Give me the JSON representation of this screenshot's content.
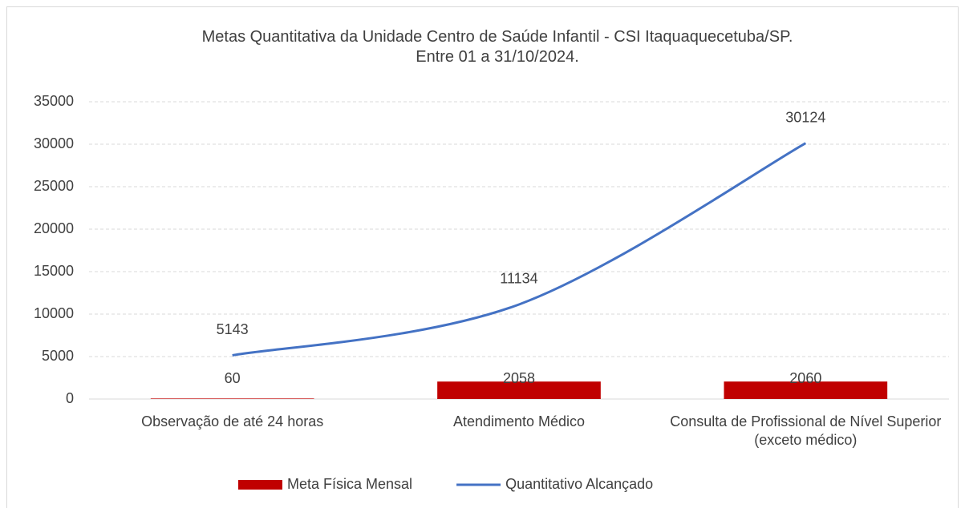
{
  "chart_data": {
    "type": "combo",
    "title": "Metas Quantitativa da Unidade Centro de Saúde Infantil - CSI Itaquaquecetuba/SP. Entre 01 a 31/10/2024.",
    "categories": [
      "Observação de até 24 horas",
      "Atendimento Médico",
      "Consulta de Profissional de Nível Superior (exceto médico)"
    ],
    "series": [
      {
        "name": "Meta Física Mensal",
        "type": "bar",
        "color": "#c00000",
        "values": [
          60,
          2058,
          2060
        ]
      },
      {
        "name": "Quantitativo Alcançado",
        "type": "line",
        "color": "#4472c4",
        "values": [
          5143,
          11134,
          30124
        ]
      }
    ],
    "ylim": [
      0,
      35000
    ],
    "yticks": [
      0,
      5000,
      10000,
      15000,
      20000,
      25000,
      30000,
      35000
    ],
    "grid": true,
    "legend": "bottom"
  }
}
